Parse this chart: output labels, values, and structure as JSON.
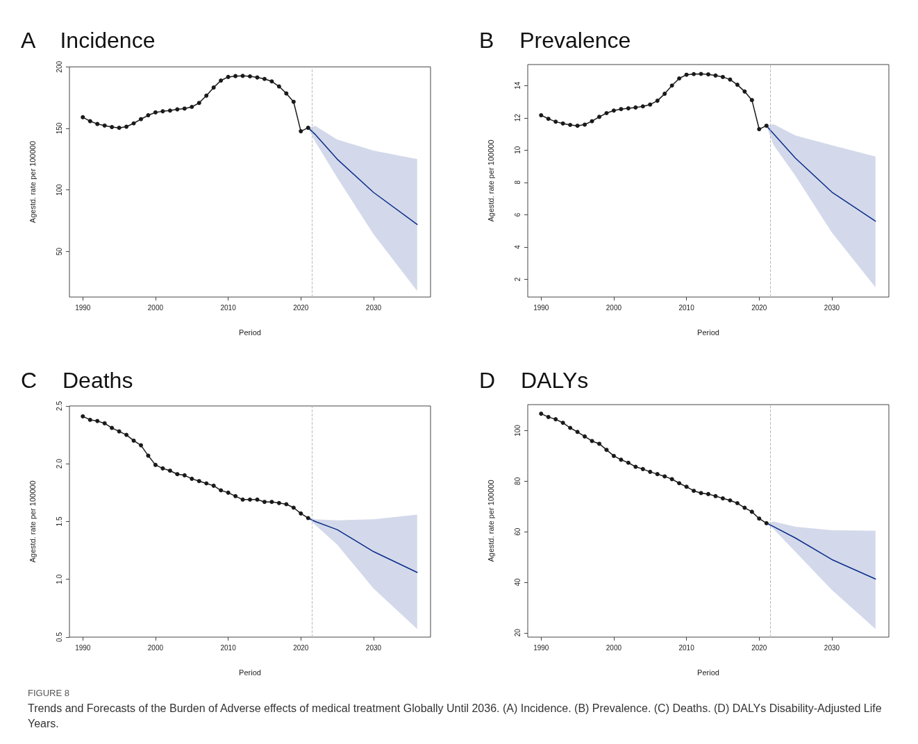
{
  "chart_data": [
    {
      "type": "line",
      "title": "A Incidence",
      "xlabel": "Period",
      "ylabel": "Agestd. rate per 100000",
      "x": [
        1990,
        1991,
        1992,
        1993,
        1994,
        1995,
        1996,
        1997,
        1998,
        1999,
        2000,
        2001,
        2002,
        2003,
        2004,
        2005,
        2006,
        2007,
        2008,
        2009,
        2010,
        2011,
        2012,
        2013,
        2014,
        2015,
        2016,
        2017,
        2018,
        2019,
        2020,
        2021
      ],
      "series": [
        {
          "color": "#1a1a1a",
          "marker": "circle",
          "values": [
            159.1,
            155.9,
            153.6,
            152.3,
            151.1,
            150.5,
            151.4,
            154.1,
            157.5,
            160.7,
            163,
            163.9,
            164.5,
            165.5,
            166.1,
            167.5,
            170.7,
            176.6,
            183.2,
            188.9,
            191.8,
            192.5,
            192.7,
            192.3,
            191.4,
            190.2,
            188.2,
            184.1,
            178.4,
            171.6,
            147.7,
            150.5
          ]
        },
        {
          "color": "#0a2c8a",
          "marker": "none",
          "x": [
            2021,
            2022,
            2025,
            2030,
            2036
          ],
          "values": [
            150.5,
            145,
            125,
            98,
            72
          ],
          "lower": [
            150.5,
            139,
            110,
            64,
            18
          ],
          "upper": [
            150.5,
            152,
            141,
            132,
            125
          ]
        }
      ],
      "xlim": [
        1988.16,
        2037.84
      ],
      "xticks": [
        1990,
        2000,
        2010,
        2020,
        2030
      ],
      "ylim": [
        13,
        200
      ],
      "yticks": [
        50,
        100,
        150,
        200
      ],
      "ref_lines": [
        {
          "axis": "x",
          "value": 2021.5,
          "color": "#bbbbbb",
          "line_style": "dashed"
        }
      ]
    },
    {
      "type": "line",
      "title": "B Prevalence",
      "xlabel": "Period",
      "ylabel": "Agestd. rate per 100000",
      "x": [
        1990,
        1991,
        1992,
        1993,
        1994,
        1995,
        1996,
        1997,
        1998,
        1999,
        2000,
        2001,
        2002,
        2003,
        2004,
        2005,
        2006,
        2007,
        2008,
        2009,
        2010,
        2011,
        2012,
        2013,
        2014,
        2015,
        2016,
        2017,
        2018,
        2019,
        2020,
        2021
      ],
      "series": [
        {
          "color": "#1a1a1a",
          "marker": "circle",
          "values": [
            12.16,
            11.94,
            11.76,
            11.65,
            11.56,
            11.51,
            11.58,
            11.79,
            12.06,
            12.29,
            12.45,
            12.54,
            12.59,
            12.64,
            12.71,
            12.82,
            13.06,
            13.49,
            14.0,
            14.44,
            14.67,
            14.71,
            14.72,
            14.69,
            14.62,
            14.53,
            14.37,
            14.05,
            13.63,
            13.1,
            11.3,
            11.51
          ]
        },
        {
          "color": "#0a2c8a",
          "marker": "none",
          "x": [
            2021,
            2022,
            2025,
            2030,
            2036
          ],
          "values": [
            11.51,
            11.0,
            9.5,
            7.4,
            5.6
          ],
          "lower": [
            11.51,
            10.3,
            8.4,
            4.9,
            1.5
          ],
          "upper": [
            11.51,
            11.6,
            10.9,
            10.3,
            9.6
          ]
        }
      ],
      "xlim": [
        1988.16,
        2037.84
      ],
      "xticks": [
        1990,
        2000,
        2010,
        2020,
        2030
      ],
      "ylim": [
        0.9,
        15.3
      ],
      "yticks": [
        2,
        4,
        6,
        8,
        10,
        12,
        14
      ],
      "ref_lines": [
        {
          "axis": "x",
          "value": 2021.5,
          "color": "#bbbbbb",
          "line_style": "dashed"
        }
      ]
    },
    {
      "type": "line",
      "title": "C Deaths",
      "xlabel": "Period",
      "ylabel": "Agestd. rate per 100000",
      "x": [
        1990,
        1991,
        1992,
        1993,
        1994,
        1995,
        1996,
        1997,
        1998,
        1999,
        2000,
        2001,
        2002,
        2003,
        2004,
        2005,
        2006,
        2007,
        2008,
        2009,
        2010,
        2011,
        2012,
        2013,
        2014,
        2015,
        2016,
        2017,
        2018,
        2019,
        2020,
        2021
      ],
      "series": [
        {
          "color": "#1a1a1a",
          "marker": "circle",
          "values": [
            2.41,
            2.38,
            2.37,
            2.35,
            2.31,
            2.28,
            2.25,
            2.2,
            2.16,
            2.07,
            1.99,
            1.96,
            1.94,
            1.91,
            1.9,
            1.87,
            1.85,
            1.83,
            1.81,
            1.77,
            1.75,
            1.72,
            1.69,
            1.69,
            1.69,
            1.67,
            1.67,
            1.66,
            1.65,
            1.62,
            1.57,
            1.53
          ]
        },
        {
          "color": "#0a2c8a",
          "marker": "none",
          "x": [
            2021,
            2022,
            2025,
            2030,
            2036
          ],
          "values": [
            1.53,
            1.5,
            1.43,
            1.24,
            1.06
          ],
          "lower": [
            1.53,
            1.47,
            1.3,
            0.92,
            0.57
          ],
          "upper": [
            1.53,
            1.52,
            1.51,
            1.52,
            1.56
          ]
        }
      ],
      "xlim": [
        1988.16,
        2037.84
      ],
      "xticks": [
        1990,
        2000,
        2010,
        2020,
        2030
      ],
      "ylim": [
        0.5,
        2.5
      ],
      "yticks": [
        {
          "value": 0.5,
          "label": "0.5"
        },
        {
          "value": 1,
          "label": "1.0"
        },
        {
          "value": 1.5,
          "label": "1.5"
        },
        {
          "value": 2,
          "label": "2.0"
        },
        {
          "value": 2.5,
          "label": "2.5"
        }
      ],
      "ref_lines": [
        {
          "axis": "x",
          "value": 2021.5,
          "color": "#bbbbbb",
          "line_style": "dashed"
        }
      ]
    },
    {
      "type": "line",
      "title": "D DALYs",
      "xlabel": "Period",
      "ylabel": "Agestd. rate per 100000",
      "x": [
        1990,
        1991,
        1992,
        1993,
        1994,
        1995,
        1996,
        1997,
        1998,
        1999,
        2000,
        2001,
        2002,
        2003,
        2004,
        2005,
        2006,
        2007,
        2008,
        2009,
        2010,
        2011,
        2012,
        2013,
        2014,
        2015,
        2016,
        2017,
        2018,
        2019,
        2020,
        2021
      ],
      "series": [
        {
          "color": "#1a1a1a",
          "marker": "circle",
          "values": [
            106.7,
            105.4,
            104.5,
            103.1,
            101.1,
            99.5,
            97.7,
            95.9,
            94.8,
            92.4,
            90.0,
            88.5,
            87.3,
            85.7,
            84.8,
            83.7,
            82.8,
            81.9,
            80.8,
            79.2,
            77.8,
            76.2,
            75.3,
            74.9,
            74.1,
            73.2,
            72.4,
            71.3,
            69.5,
            67.9,
            65.2,
            63.4
          ]
        },
        {
          "color": "#0a2c8a",
          "marker": "none",
          "x": [
            2021,
            2022,
            2025,
            2030,
            2036
          ],
          "values": [
            63.4,
            62,
            57.5,
            49,
            41.3
          ],
          "lower": [
            63.4,
            61,
            52,
            37,
            21.5
          ],
          "upper": [
            63.4,
            64,
            62,
            60.6,
            60.4
          ]
        }
      ],
      "xlim": [
        1988.16,
        2037.84
      ],
      "xticks": [
        1990,
        2000,
        2010,
        2020,
        2030
      ],
      "ylim": [
        18.3,
        110.3
      ],
      "yticks": [
        20,
        40,
        60,
        80,
        100
      ],
      "ref_lines": [
        {
          "axis": "x",
          "value": 2021.5,
          "color": "#bbbbbb",
          "line_style": "dashed"
        }
      ],
      "annotations": [
        "FIGURE 8",
        "Trends and Forecasts of the Burden of Adverse effects of medical treatment Globally Until 2036. (A) Incidence. (B) Prevalence. (C) Deaths. (D) DALYs Disability-Adjusted Life Years."
      ]
    }
  ]
}
